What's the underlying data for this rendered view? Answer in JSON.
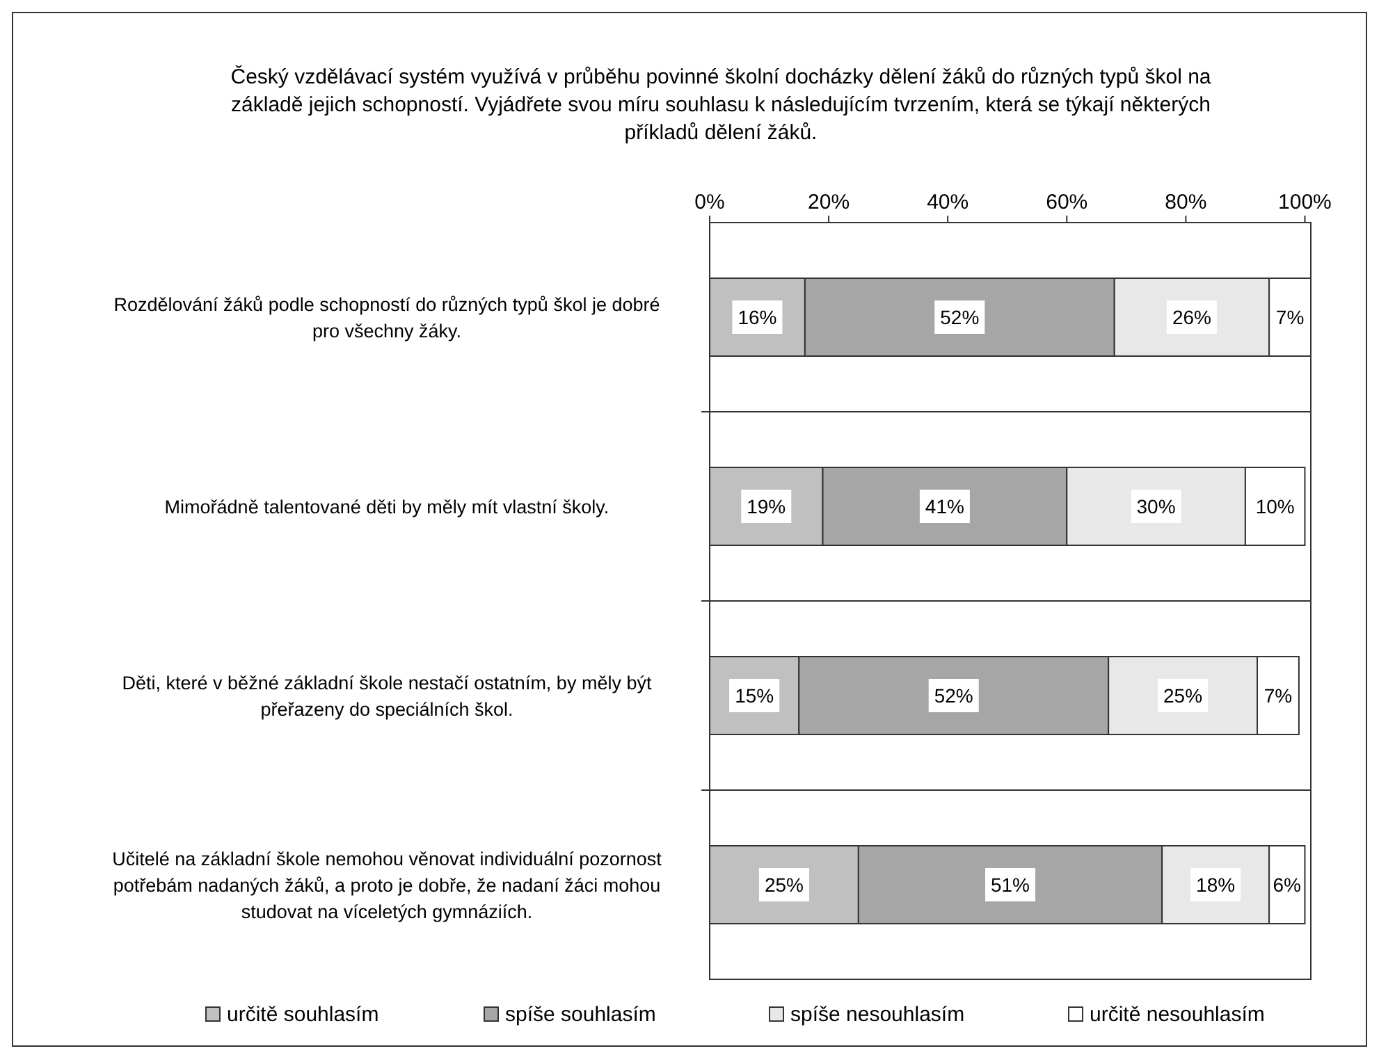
{
  "chart_data": {
    "type": "bar",
    "orientation": "horizontal",
    "stacked": true,
    "legend": "bottom",
    "grid": "y",
    "title": "Český vzdělávací systém využívá v průběhu povinné školní docházky dělení žáků do různých typů škol na základě jejich schopností. Vyjádřete svou míru souhlasu k následujícím tvrzením, která se týkají některých příkladů dělení žáků.",
    "categories": [
      "Rozdělování žáků podle schopností do různých typů škol je dobré pro všechny žáky.",
      "Mimořádně talentované děti by měly mít vlastní školy.",
      "Děti, které v běžné základní škole nestačí ostatním, by měly být přeřazeny do speciálních škol.",
      "Učitelé na základní škole nemohou věnovat individuální pozornost potřebám nadaných žáků, a proto je dobře, že nadaní žáci mohou studovat na víceletých gymnáziích."
    ],
    "xlim": [
      0,
      101
    ],
    "xticks": [
      {
        "value": 0,
        "label": "0%"
      },
      {
        "value": 20,
        "label": "20%"
      },
      {
        "value": 40,
        "label": "40%"
      },
      {
        "value": 60,
        "label": "60%"
      },
      {
        "value": 80,
        "label": "80%"
      },
      {
        "value": 100,
        "label": "100%"
      }
    ],
    "series": [
      {
        "name": "určitě souhlasím",
        "color": "#c0c0c0",
        "values": [
          16,
          19,
          15,
          25
        ],
        "value_labels": [
          "16%",
          "19%",
          "15%",
          "25%"
        ]
      },
      {
        "name": "spíše souhlasím",
        "color": "#a6a6a6",
        "values": [
          52,
          41,
          52,
          51
        ],
        "value_labels": [
          "52%",
          "41%",
          "52%",
          "51%"
        ]
      },
      {
        "name": "spíše nesouhlasím",
        "color": "#e8e8e8",
        "values": [
          26,
          30,
          25,
          18
        ],
        "value_labels": [
          "26%",
          "30%",
          "25%",
          "18%"
        ]
      },
      {
        "name": "určitě nesouhlasím",
        "color": "#ffffff",
        "values": [
          7,
          10,
          7,
          6
        ],
        "value_labels": [
          "7%",
          "10%",
          "7%",
          "6%"
        ]
      }
    ]
  }
}
